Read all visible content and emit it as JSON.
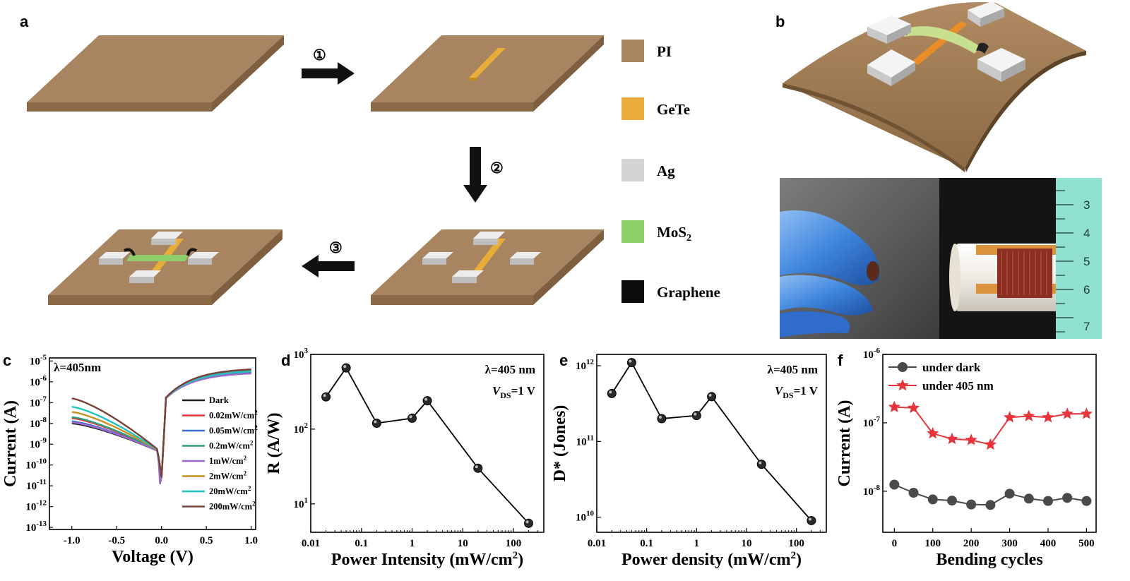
{
  "panel_labels": {
    "a": "a",
    "b": "b",
    "c": "c",
    "d": "d",
    "e": "e",
    "f": "f"
  },
  "steps": {
    "s1": "①",
    "s2": "②",
    "s3": "③"
  },
  "legend": [
    {
      "label": "PI",
      "color": "#a98460"
    },
    {
      "label": "GeTe",
      "color": "#e8ac38"
    },
    {
      "label": "Ag",
      "color": "#d4d4d4"
    },
    {
      "label": "MoS",
      "sub": "2",
      "color": "#8ecf6b"
    },
    {
      "label": "Graphene",
      "color": "#0b0b0b"
    }
  ],
  "photo_ruler": [
    "3",
    "4",
    "5",
    "6",
    "7"
  ],
  "colors": {
    "pi": "#a98460",
    "pi_side": "#8b6a48",
    "gete": "#e8ac38",
    "ag": "#d8d8d8",
    "mos2": "#a6d27a",
    "graphene": "#111111",
    "red": "#e8333a",
    "gray": "#4a4a4a"
  },
  "chart_data": [
    {
      "panel": "c",
      "type": "line",
      "annotation": "λ=405nm",
      "xlabel": "Voltage (V)",
      "ylabel": "Current (A)",
      "xticks": [
        "-1.0",
        "-0.5",
        "0.0",
        "0.5",
        "1.0"
      ],
      "yticks": [
        "-13",
        "-12",
        "-11",
        "-10",
        "-9",
        "-8",
        "-7",
        "-6",
        "-5"
      ],
      "ytick_base": "10",
      "xlim": [
        -1.25,
        1.05
      ],
      "ylim_log10": [
        -13.1,
        -4.85
      ],
      "series": [
        {
          "name": "Dark",
          "color": "#222222",
          "v_neg1": -8.0,
          "v_pos1": -5.45
        },
        {
          "name": "0.02mW/cm",
          "color": "#e8333a",
          "v_neg1": -7.75,
          "v_pos1": -5.5
        },
        {
          "name": "0.05mW/cm",
          "color": "#3a6fd1",
          "v_neg1": -7.9,
          "v_pos1": -5.55
        },
        {
          "name": "0.2mW/cm",
          "color": "#2f9c7a",
          "v_neg1": -7.7,
          "v_pos1": -5.45
        },
        {
          "name": "1mW/cm",
          "color": "#9a6ad0",
          "v_neg1": -7.95,
          "v_pos1": -5.6
        },
        {
          "name": "2mW/cm",
          "color": "#c9901f",
          "v_neg1": -7.45,
          "v_pos1": -5.5
        },
        {
          "name": "20mW/cm",
          "color": "#22c1c3",
          "v_neg1": -7.2,
          "v_pos1": -5.5
        },
        {
          "name": "200mW/cm",
          "color": "#7b4038",
          "v_neg1": -6.8,
          "v_pos1": -5.4
        }
      ],
      "legend_sup": "2"
    },
    {
      "panel": "d",
      "type": "line",
      "annotation1": "λ=405 nm",
      "annotation2_v": "V",
      "annotation2_sub": "DS",
      "annotation2_rest": "=1 V",
      "xlabel": "Power Intensity (mW/cm",
      "xlabel_sup": "2",
      "xlabel_end": ")",
      "ylabel": "R (A/W)",
      "xticks": [
        "0.01",
        "0.1",
        "1",
        "10",
        "100"
      ],
      "yticks": [
        {
          "base": "10",
          "exp": "1"
        },
        {
          "base": "10",
          "exp": "2"
        },
        {
          "base": "10",
          "exp": "3"
        }
      ],
      "xlim_log10": [
        -2,
        2.6
      ],
      "ylim_log10": [
        0.62,
        3
      ],
      "x": [
        0.02,
        0.05,
        0.2,
        1,
        2,
        20,
        200
      ],
      "y": [
        270,
        660,
        120,
        140,
        240,
        30,
        5.5
      ]
    },
    {
      "panel": "e",
      "type": "line",
      "annotation1": "λ=405 nm",
      "annotation2_v": "V",
      "annotation2_sub": "DS",
      "annotation2_rest": "=1 V",
      "xlabel": "Power density (mW/cm",
      "xlabel_sup": "2",
      "xlabel_end": ")",
      "ylabel": "D* (Jones)",
      "xticks": [
        "0.01",
        "0.1",
        "1",
        "10",
        "100"
      ],
      "yticks": [
        {
          "base": "10",
          "exp": "10"
        },
        {
          "base": "10",
          "exp": "11"
        },
        {
          "base": "10",
          "exp": "12"
        }
      ],
      "xlim_log10": [
        -2,
        2.6
      ],
      "ylim_log10": [
        9.8,
        12.15
      ],
      "x": [
        0.02,
        0.05,
        0.2,
        1,
        2,
        20,
        200
      ],
      "y": [
        430000000000.0,
        1100000000000.0,
        200000000000.0,
        220000000000.0,
        390000000000.0,
        50000000000.0,
        9000000000.0
      ]
    },
    {
      "panel": "f",
      "type": "line",
      "xlabel": "Bending cycles",
      "ylabel": "Current (A)",
      "xticks": [
        "0",
        "100",
        "200",
        "300",
        "400",
        "500"
      ],
      "yticks": [
        {
          "base": "10",
          "exp": "-8"
        },
        {
          "base": "10",
          "exp": "-7"
        },
        {
          "base": "10",
          "exp": "-6"
        }
      ],
      "xlim": [
        -30,
        525
      ],
      "ylim_log10": [
        -8.6,
        -6
      ],
      "series": [
        {
          "name": "under dark",
          "color": "#4a4a4a",
          "marker": "circle",
          "x": [
            0,
            50,
            100,
            150,
            200,
            250,
            300,
            350,
            400,
            450,
            500
          ],
          "y": [
            1.25e-08,
            9.5e-09,
            7.6e-09,
            7.3e-09,
            6.4e-09,
            6.3e-09,
            9.2e-09,
            7.8e-09,
            7.2e-09,
            8e-09,
            7.2e-09
          ]
        },
        {
          "name": "under 405 nm",
          "color": "#e8333a",
          "marker": "star",
          "x": [
            0,
            50,
            100,
            150,
            200,
            250,
            300,
            350,
            400,
            450,
            500
          ],
          "y": [
            1.7e-07,
            1.65e-07,
            7e-08,
            5.8e-08,
            5.6e-08,
            4.8e-08,
            1.2e-07,
            1.25e-07,
            1.2e-07,
            1.35e-07,
            1.35e-07
          ]
        }
      ]
    }
  ]
}
